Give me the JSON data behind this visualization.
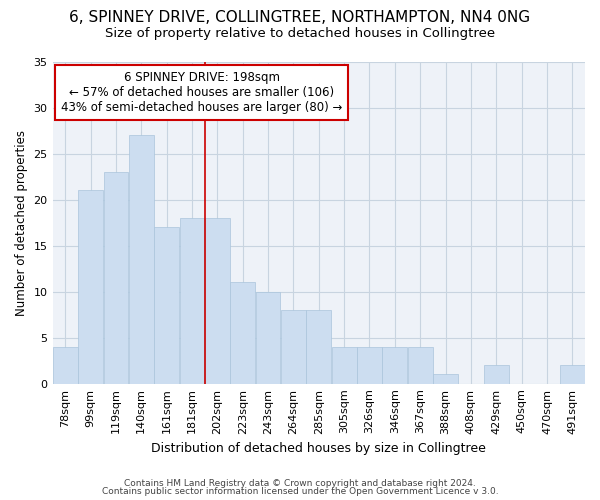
{
  "title1": "6, SPINNEY DRIVE, COLLINGTREE, NORTHAMPTON, NN4 0NG",
  "title2": "Size of property relative to detached houses in Collingtree",
  "xlabel": "Distribution of detached houses by size in Collingtree",
  "ylabel": "Number of detached properties",
  "categories": [
    "78sqm",
    "99sqm",
    "119sqm",
    "140sqm",
    "161sqm",
    "181sqm",
    "202sqm",
    "223sqm",
    "243sqm",
    "264sqm",
    "285sqm",
    "305sqm",
    "326sqm",
    "346sqm",
    "367sqm",
    "388sqm",
    "408sqm",
    "429sqm",
    "450sqm",
    "470sqm",
    "491sqm"
  ],
  "values": [
    4,
    21,
    23,
    27,
    17,
    18,
    18,
    11,
    10,
    8,
    8,
    4,
    4,
    4,
    4,
    1,
    0,
    2,
    0,
    0,
    2
  ],
  "bar_color": "#ccddf0",
  "bar_edge_color": "#aac4dc",
  "bar_width": 0.98,
  "ylim": [
    0,
    35
  ],
  "yticks": [
    0,
    5,
    10,
    15,
    20,
    25,
    30,
    35
  ],
  "property_label": "6 SPINNEY DRIVE: 198sqm",
  "annotation_line1": "← 57% of detached houses are smaller (106)",
  "annotation_line2": "43% of semi-detached houses are larger (80) →",
  "red_line_color": "#cc0000",
  "annotation_box_color": "#ffffff",
  "annotation_box_edge": "#cc0000",
  "grid_color": "#c8d4e0",
  "bg_color": "#eef2f8",
  "footer1": "Contains HM Land Registry data © Crown copyright and database right 2024.",
  "footer2": "Contains public sector information licensed under the Open Government Licence v 3.0.",
  "title1_fontsize": 11,
  "title2_fontsize": 9.5,
  "xlabel_fontsize": 9,
  "ylabel_fontsize": 8.5,
  "tick_fontsize": 8,
  "footer_fontsize": 6.5,
  "annot_fontsize": 8.5
}
